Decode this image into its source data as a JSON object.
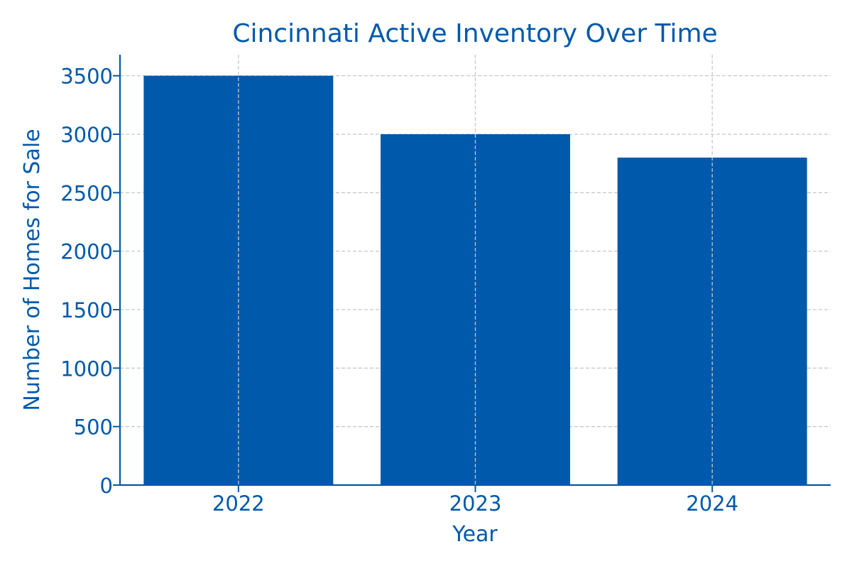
{
  "chart_data": {
    "type": "bar",
    "title": "Cincinnati Active Inventory Over Time",
    "xlabel": "Year",
    "ylabel": "Number of Homes for Sale",
    "categories": [
      "2022",
      "2023",
      "2024"
    ],
    "values": [
      3500,
      3000,
      2800
    ],
    "ylim": [
      0,
      3680
    ],
    "yticks": [
      0,
      500,
      1000,
      1500,
      2000,
      2500,
      3000,
      3500
    ],
    "grid": true,
    "legend": "none",
    "colors": {
      "bar": "#0059ab",
      "text": "#0059ab",
      "axis": "#0059ab",
      "grid": "#c8c8c8"
    }
  }
}
